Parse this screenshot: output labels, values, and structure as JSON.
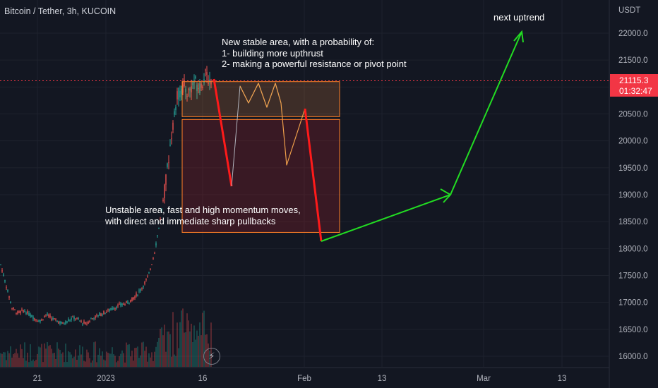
{
  "header": {
    "symbol_title": "Bitcoin / Tether, 3h, KUCOIN",
    "axis_unit": "USDT"
  },
  "price_axis": {
    "ticks": [
      "22000.0",
      "21500.0",
      "21000.0",
      "20500.0",
      "20000.0",
      "19500.0",
      "19000.0",
      "18500.0",
      "18000.0",
      "17500.0",
      "17000.0",
      "16500.0",
      "16000.0"
    ],
    "current_price": "21115.3",
    "countdown": "01:32:47"
  },
  "time_axis": {
    "ticks": [
      "21",
      "2023",
      "16",
      "Feb",
      "13",
      "Mar",
      "13"
    ]
  },
  "annotations": {
    "top_note": "New stable area, with a probability of:\n1- building more upthrust\n2- making a powerful resistance or pivot point",
    "middle_note": "Unstable area, fast and high momentum moves,\nwith direct and immediate sharp pullbacks",
    "target_note": "next uptrend"
  },
  "colors": {
    "background": "#131722",
    "up_candle": "#26a69a",
    "down_candle": "#ef5350",
    "price_tag": "#f23645",
    "zone_border": "#ff7f27",
    "arrow_green": "#22dd22",
    "projection_red": "#ff1a1a",
    "projection_orange": "#f0a04b"
  },
  "chart_data": {
    "type": "candlestick",
    "title": "Bitcoin / Tether, 3h, KUCOIN",
    "ylabel": "USDT",
    "ylim": [
      15850,
      22400
    ],
    "x_ticks": [
      "21",
      "2023",
      "16",
      "Feb",
      "13",
      "Mar",
      "13"
    ],
    "last_price": 21115.3,
    "price_series": {
      "name": "BTCUSDT",
      "period_labels": [
        "Dec 21",
        "Jan 1 2023",
        "Jan 16"
      ],
      "approx_close": [
        17700,
        17300,
        16900,
        16800,
        16850,
        16780,
        16700,
        16650,
        16780,
        16700,
        16650,
        16600,
        16680,
        16720,
        16650,
        16600,
        16700,
        16750,
        16800,
        16850,
        16900,
        16950,
        16980,
        17050,
        17150,
        17300,
        17500,
        17900,
        18500,
        19200,
        20100,
        20800,
        21000,
        20900,
        21100,
        21000,
        21200,
        21115.3
      ]
    },
    "zones": [
      {
        "top": 21100,
        "bottom": 20450,
        "description": "New stable area"
      },
      {
        "top": 20450,
        "bottom": 18300,
        "description": "Unstable area"
      }
    ],
    "projections": [
      {
        "color": "red",
        "points": [
          [
            21150
          ],
          [
            19150
          ]
        ]
      },
      {
        "color": "red",
        "points": [
          [
            20600
          ],
          [
            18100
          ]
        ]
      },
      {
        "color": "green",
        "points": [
          [
            18100
          ],
          [
            19000
          ],
          [
            22050
          ]
        ]
      }
    ],
    "horizontal_line": 21115.3,
    "grid": true
  }
}
